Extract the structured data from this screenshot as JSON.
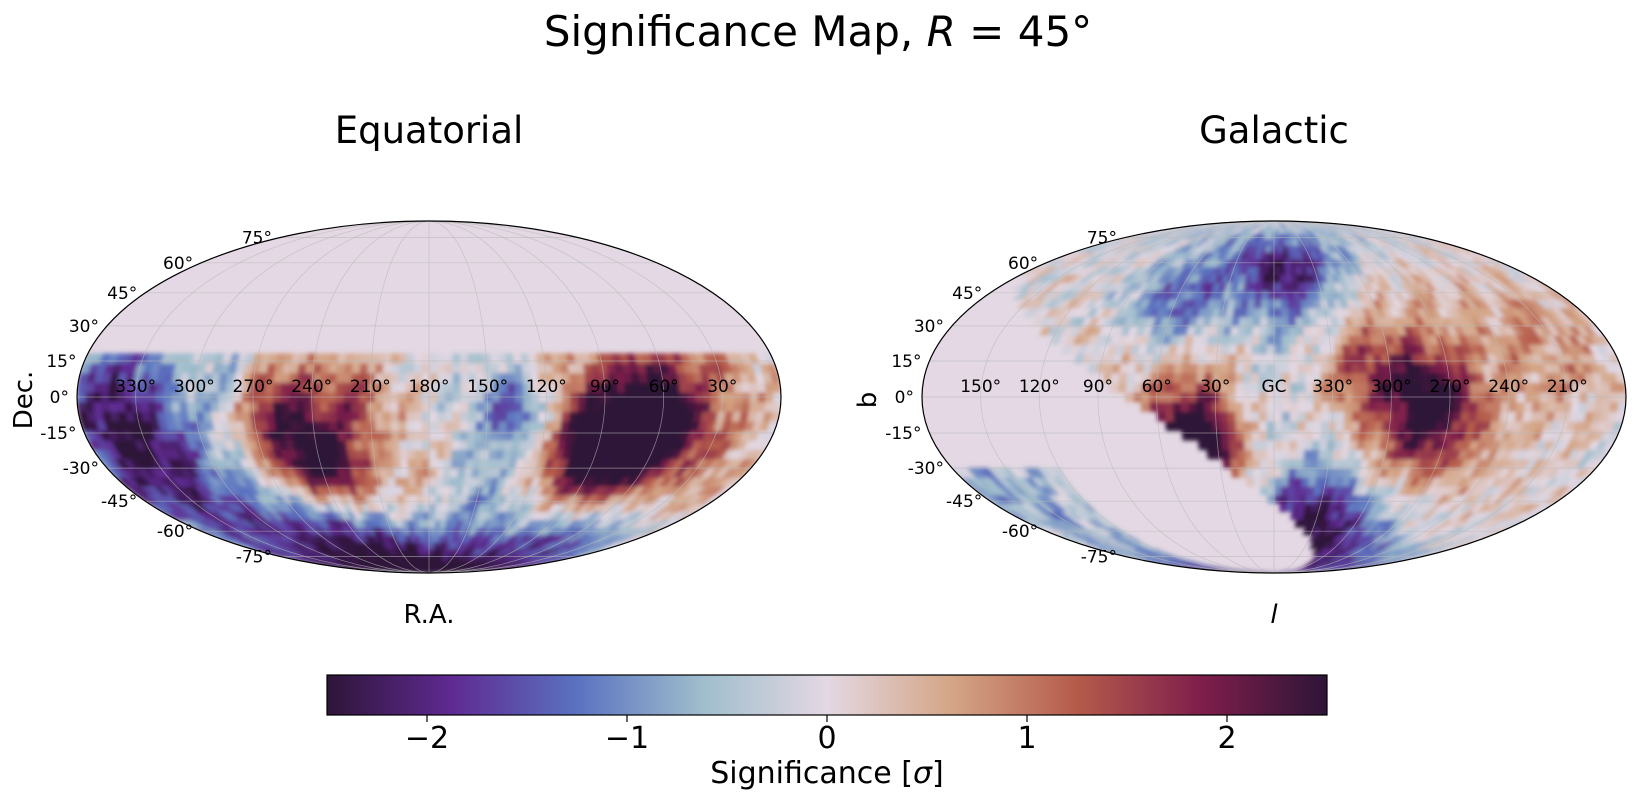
{
  "chart_data": {
    "type": "heatmap",
    "title_prefix": "Significance Map, ",
    "title_var": "R",
    "title_suffix": " = 45°",
    "colormap": [
      "#2e1538",
      "#5f2a91",
      "#5a72c0",
      "#9fbdcc",
      "#e3d8e3",
      "#d4a586",
      "#b55b4b",
      "#7e1e4b",
      "#2e1538"
    ],
    "panels": [
      {
        "title": "Equatorial",
        "xlabel": "R.A.",
        "ylabel": "Dec.",
        "lon_ticks": [
          "330°",
          "300°",
          "270°",
          "240°",
          "210°",
          "180°",
          "150°",
          "120°",
          "90°",
          "60°",
          "30°"
        ],
        "lat_ticks": [
          "75°",
          "60°",
          "45°",
          "30°",
          "15°",
          "0°",
          "-15°",
          "-30°",
          "-45°",
          "-60°",
          "-75°"
        ],
        "coverage_dec_max": 17,
        "blobs": [
          {
            "lon": -115,
            "lat": -10,
            "r": 34,
            "v": 1.7
          },
          {
            "lon": -115,
            "lat": -12,
            "r": 14,
            "v": 2.4
          },
          {
            "lon": -98,
            "lat": -20,
            "r": 14,
            "v": 2.2
          },
          {
            "lon": -78,
            "lat": -25,
            "r": 18,
            "v": 1.3
          },
          {
            "lon": -45,
            "lat": -5,
            "r": 12,
            "v": -1.6
          },
          {
            "lon": 60,
            "lat": -25,
            "r": 28,
            "v": 1.4
          },
          {
            "lon": 60,
            "lat": -28,
            "r": 12,
            "v": 2.1
          },
          {
            "lon": 80,
            "lat": -5,
            "r": 14,
            "v": 1.4
          },
          {
            "lon": 40,
            "lat": 0,
            "r": 10,
            "v": 0.8
          },
          {
            "lon": 150,
            "lat": -35,
            "r": 30,
            "v": -2.0
          },
          {
            "lon": 165,
            "lat": 0,
            "r": 20,
            "v": -1.3
          },
          {
            "lon": -40,
            "lat": -62,
            "r": 30,
            "v": -1.6
          },
          {
            "lon": 70,
            "lat": -65,
            "r": 22,
            "v": -1.8
          },
          {
            "lon": -120,
            "lat": -62,
            "r": 18,
            "v": -1.2
          },
          {
            "lon": 0,
            "lat": -40,
            "r": 12,
            "v": 0.6
          },
          {
            "lon": 100,
            "lat": 10,
            "r": 12,
            "v": -0.6
          }
        ]
      },
      {
        "title": "Galactic",
        "xlabel": "l",
        "ylabel": "b",
        "lon_ticks": [
          "150°",
          "120°",
          "90°",
          "60°",
          "30°",
          "GC",
          "330°",
          "300°",
          "270°",
          "240°",
          "210°"
        ],
        "lat_ticks": [
          "75°",
          "60°",
          "45°",
          "30°",
          "15°",
          "0°",
          "-15°",
          "-30°",
          "-45°",
          "-60°",
          "-75°"
        ],
        "blobs": [
          {
            "lon": 40,
            "lat": -15,
            "r": 28,
            "v": 1.6
          },
          {
            "lon": 42,
            "lat": -20,
            "r": 12,
            "v": 2.4
          },
          {
            "lon": -75,
            "lat": 0,
            "r": 32,
            "v": 1.3
          },
          {
            "lon": -80,
            "lat": -5,
            "r": 14,
            "v": 1.9
          },
          {
            "lon": -45,
            "lat": 12,
            "r": 14,
            "v": 1.0
          },
          {
            "lon": -10,
            "lat": 55,
            "r": 14,
            "v": -1.7
          },
          {
            "lon": -10,
            "lat": -65,
            "r": 30,
            "v": -1.8
          },
          {
            "lon": -30,
            "lat": -55,
            "r": 18,
            "v": -1.4
          },
          {
            "lon": 0,
            "lat": 40,
            "r": 30,
            "v": -0.8
          },
          {
            "lon": 60,
            "lat": 40,
            "r": 16,
            "v": -1.3
          },
          {
            "lon": 160,
            "lat": -45,
            "r": 25,
            "v": -0.8
          },
          {
            "lon": -150,
            "lat": 20,
            "r": 20,
            "v": 0.7
          },
          {
            "lon": 10,
            "lat": -5,
            "r": 10,
            "v": -0.5
          }
        ]
      }
    ],
    "colorbar": {
      "range": [
        -2.5,
        2.5
      ],
      "ticks": [
        "−2",
        "−1",
        "0",
        "1",
        "2"
      ],
      "label_prefix": "Significance [",
      "label_var": "σ",
      "label_suffix": "]"
    }
  }
}
